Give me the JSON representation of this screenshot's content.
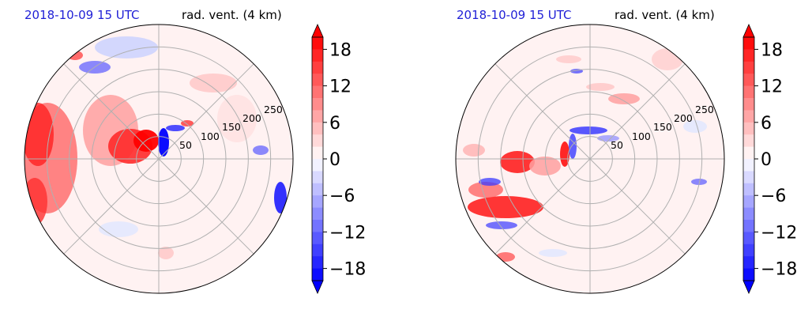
{
  "colors": {
    "negative_max": "#0000ff",
    "neutral": "#ffffff",
    "positive_max": "#ff0000",
    "grid": "#b0b0b0"
  },
  "chart_data": [
    {
      "type": "heatmap",
      "projection": "polar",
      "time_label": "2018-10-09 15 UTC",
      "title": "rad. vent. (4 km)",
      "radial_ticks": [
        50,
        100,
        150,
        200,
        250
      ],
      "radial_max": 300,
      "angular_grid_deg": 45,
      "grid": true,
      "colorbar": {
        "min": -20,
        "max": 20,
        "step": 2,
        "ticks": [
          -18,
          -12,
          -6,
          0,
          6,
          12,
          18
        ],
        "extend": "both"
      }
    },
    {
      "type": "heatmap",
      "projection": "polar",
      "time_label": "2018-10-09 15 UTC",
      "title": "rad. vent. (4 km)",
      "radial_ticks": [
        50,
        100,
        150,
        200,
        250
      ],
      "radial_max": 300,
      "angular_grid_deg": 45,
      "grid": true,
      "colorbar": {
        "min": -20,
        "max": 20,
        "step": 2,
        "ticks": [
          -18,
          -12,
          -6,
          0,
          6,
          12,
          18
        ],
        "extend": "both"
      }
    }
  ]
}
